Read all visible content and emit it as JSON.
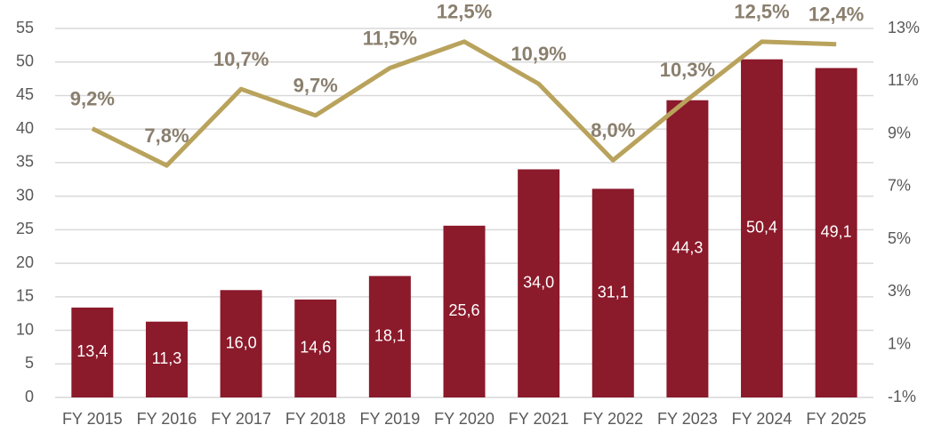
{
  "chart_data": {
    "type": "bar",
    "categories": [
      "FY 2015",
      "FY 2016",
      "FY 2017",
      "FY 2018",
      "FY 2019",
      "FY 2020",
      "FY 2021",
      "FY 2022",
      "FY 2023",
      "FY 2024",
      "FY 2025"
    ],
    "series": [
      {
        "type": "bar",
        "color": "#8b1a2b",
        "values": [
          13.4,
          11.3,
          16.0,
          14.6,
          18.1,
          25.6,
          34.0,
          31.1,
          44.3,
          50.4,
          49.1
        ],
        "value_labels": [
          "13,4",
          "11,3",
          "16,0",
          "14,6",
          "18,1",
          "25,6",
          "34,0",
          "31,1",
          "44,3",
          "50,4",
          "49,1"
        ]
      },
      {
        "type": "line",
        "axis": "y2",
        "color": "#b9a35c",
        "values": [
          9.2,
          7.8,
          10.7,
          9.7,
          11.5,
          12.5,
          10.9,
          8.0,
          10.3,
          12.5,
          12.4
        ],
        "value_labels": [
          "9,2%",
          "7,8%",
          "10,7%",
          "9,7%",
          "11,5%",
          "12,5%",
          "10,9%",
          "8,0%",
          "10,3%",
          "12,5%",
          "12,4%"
        ]
      }
    ],
    "ylim": [
      0,
      55
    ],
    "yticks": [
      0,
      5,
      10,
      15,
      20,
      25,
      30,
      35,
      40,
      45,
      50,
      55
    ],
    "y2lim": [
      -1,
      13
    ],
    "y2ticks": [
      {
        "value": -1,
        "label": "-1%"
      },
      {
        "value": 1,
        "label": "1%"
      },
      {
        "value": 3,
        "label": "3%"
      },
      {
        "value": 5,
        "label": "5%"
      },
      {
        "value": 7,
        "label": "7%"
      },
      {
        "value": 9,
        "label": "9%"
      },
      {
        "value": 11,
        "label": "11%"
      },
      {
        "value": 13,
        "label": "13%"
      }
    ],
    "grid": true
  }
}
